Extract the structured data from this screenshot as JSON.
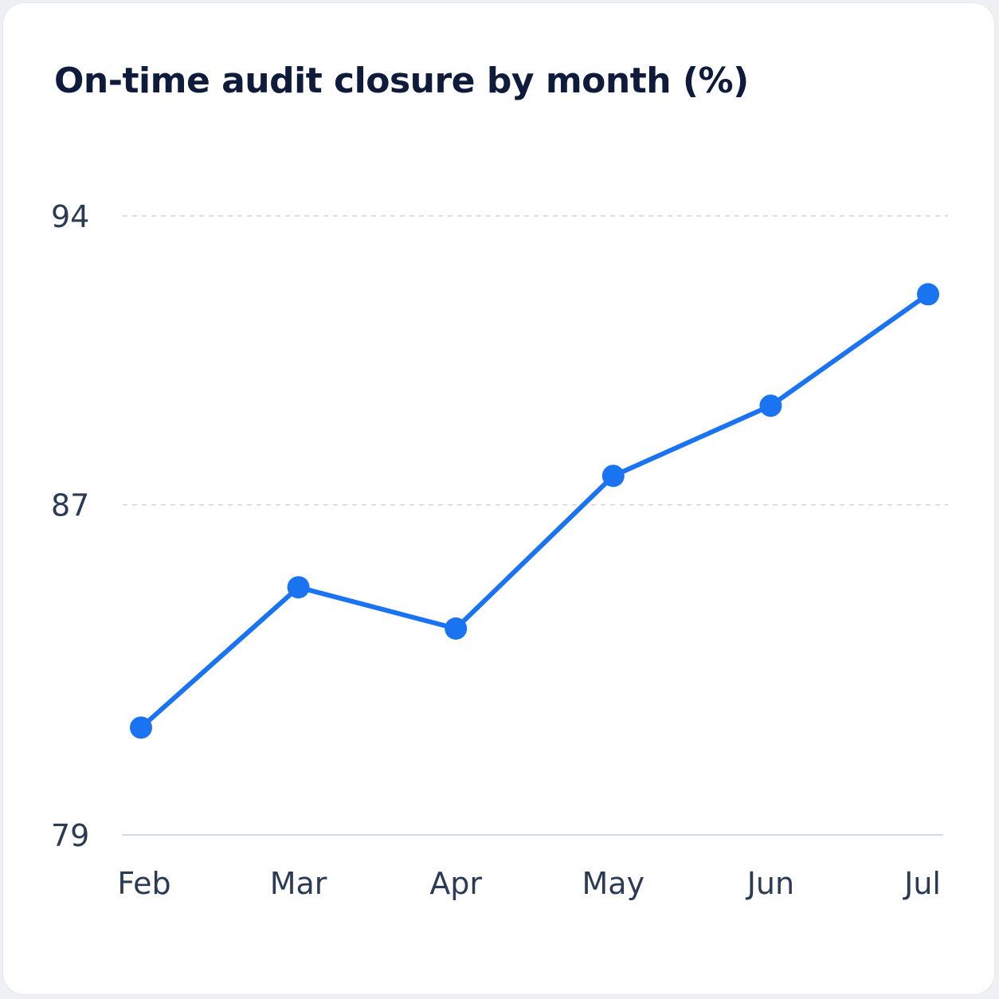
{
  "chart_data": {
    "type": "line",
    "title": "On-time audit closure by month (%)",
    "xlabel": "",
    "ylabel": "",
    "categories": [
      "Feb",
      "Mar",
      "Apr",
      "May",
      "Jun",
      "Jul"
    ],
    "series": [
      {
        "values": [
          81.6,
          85.0,
          84.0,
          87.7,
          89.4,
          92.1
        ]
      }
    ],
    "y_ticks": [
      79,
      87,
      94
    ],
    "ylim": [
      79,
      94
    ],
    "grid": true,
    "line_color": "#1a73f0"
  }
}
